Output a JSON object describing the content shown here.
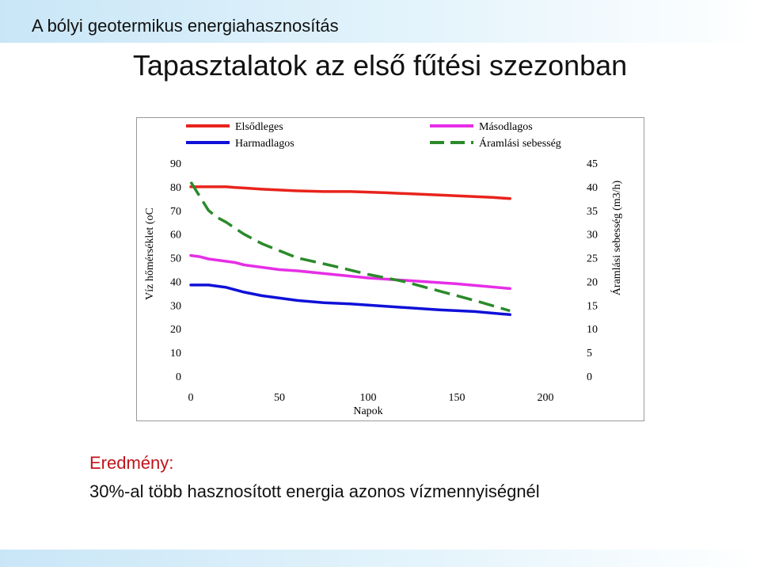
{
  "header": {
    "text": "A bólyi geotermikus energiahasznosítás"
  },
  "slide": {
    "title": "Tapasztalatok az első fűtési szezonban"
  },
  "result": {
    "label": "Eredmény:",
    "text": "30%-al több hasznosított energia azonos vízmennyiségnél"
  },
  "chart_data": {
    "type": "line",
    "xlabel": "Napok",
    "ylabel_left": "Víz hőmérséklet (oC",
    "ylabel_right": "Áramlási sebesség (m3/h)",
    "xlim": [
      0,
      200
    ],
    "ylim_left": [
      0,
      90
    ],
    "ylim_right": [
      0,
      45
    ],
    "x_ticks": [
      "0",
      "50",
      "100",
      "150",
      "200"
    ],
    "y_ticks_left": [
      "0",
      "10",
      "20",
      "30",
      "40",
      "50",
      "60",
      "70",
      "80",
      "90"
    ],
    "y_ticks_right": [
      "0",
      "5",
      "10",
      "15",
      "20",
      "25",
      "30",
      "35",
      "40",
      "45"
    ],
    "grid": false,
    "legend_position": "top",
    "series": [
      {
        "name": "Elsődleges",
        "axis": "left",
        "color": "#e8231c",
        "dash": "solid",
        "x": [
          0,
          10,
          20,
          25,
          30,
          40,
          60,
          75,
          90,
          110,
          140,
          170,
          180
        ],
        "y": [
          80,
          80,
          80,
          79.7,
          79.5,
          79,
          78.3,
          78,
          78,
          77.5,
          76.5,
          75.5,
          75
        ]
      },
      {
        "name": "Másodlagos",
        "axis": "left",
        "color": "#e62ee6",
        "dash": "solid",
        "x": [
          0,
          5,
          10,
          20,
          25,
          30,
          40,
          50,
          60,
          80,
          100,
          120,
          150,
          180
        ],
        "y": [
          51,
          50.5,
          49.5,
          48.5,
          48,
          47,
          46,
          45,
          44.5,
          43,
          41.5,
          40.5,
          39,
          37
        ]
      },
      {
        "name": "Harmadlagos",
        "axis": "left",
        "color": "#1010d8",
        "dash": "solid",
        "x": [
          0,
          5,
          10,
          15,
          20,
          25,
          30,
          40,
          50,
          60,
          75,
          90,
          100,
          120,
          140,
          160,
          180
        ],
        "y": [
          38.5,
          38.5,
          38.5,
          38,
          37.5,
          36.5,
          35.5,
          34,
          33,
          32,
          31,
          30.5,
          30,
          29,
          28,
          27.3,
          26
        ]
      },
      {
        "name": "Áramlási sebesség",
        "axis": "right",
        "color": "#2a8a2a",
        "dash": "dashed",
        "x": [
          0,
          5,
          10,
          15,
          20,
          30,
          40,
          50,
          60,
          80,
          100,
          120,
          140,
          160,
          180
        ],
        "y": [
          41,
          38,
          35,
          33.5,
          32.5,
          30,
          28,
          26.5,
          25,
          23.3,
          21.5,
          20,
          18,
          16,
          13.8
        ]
      }
    ]
  }
}
